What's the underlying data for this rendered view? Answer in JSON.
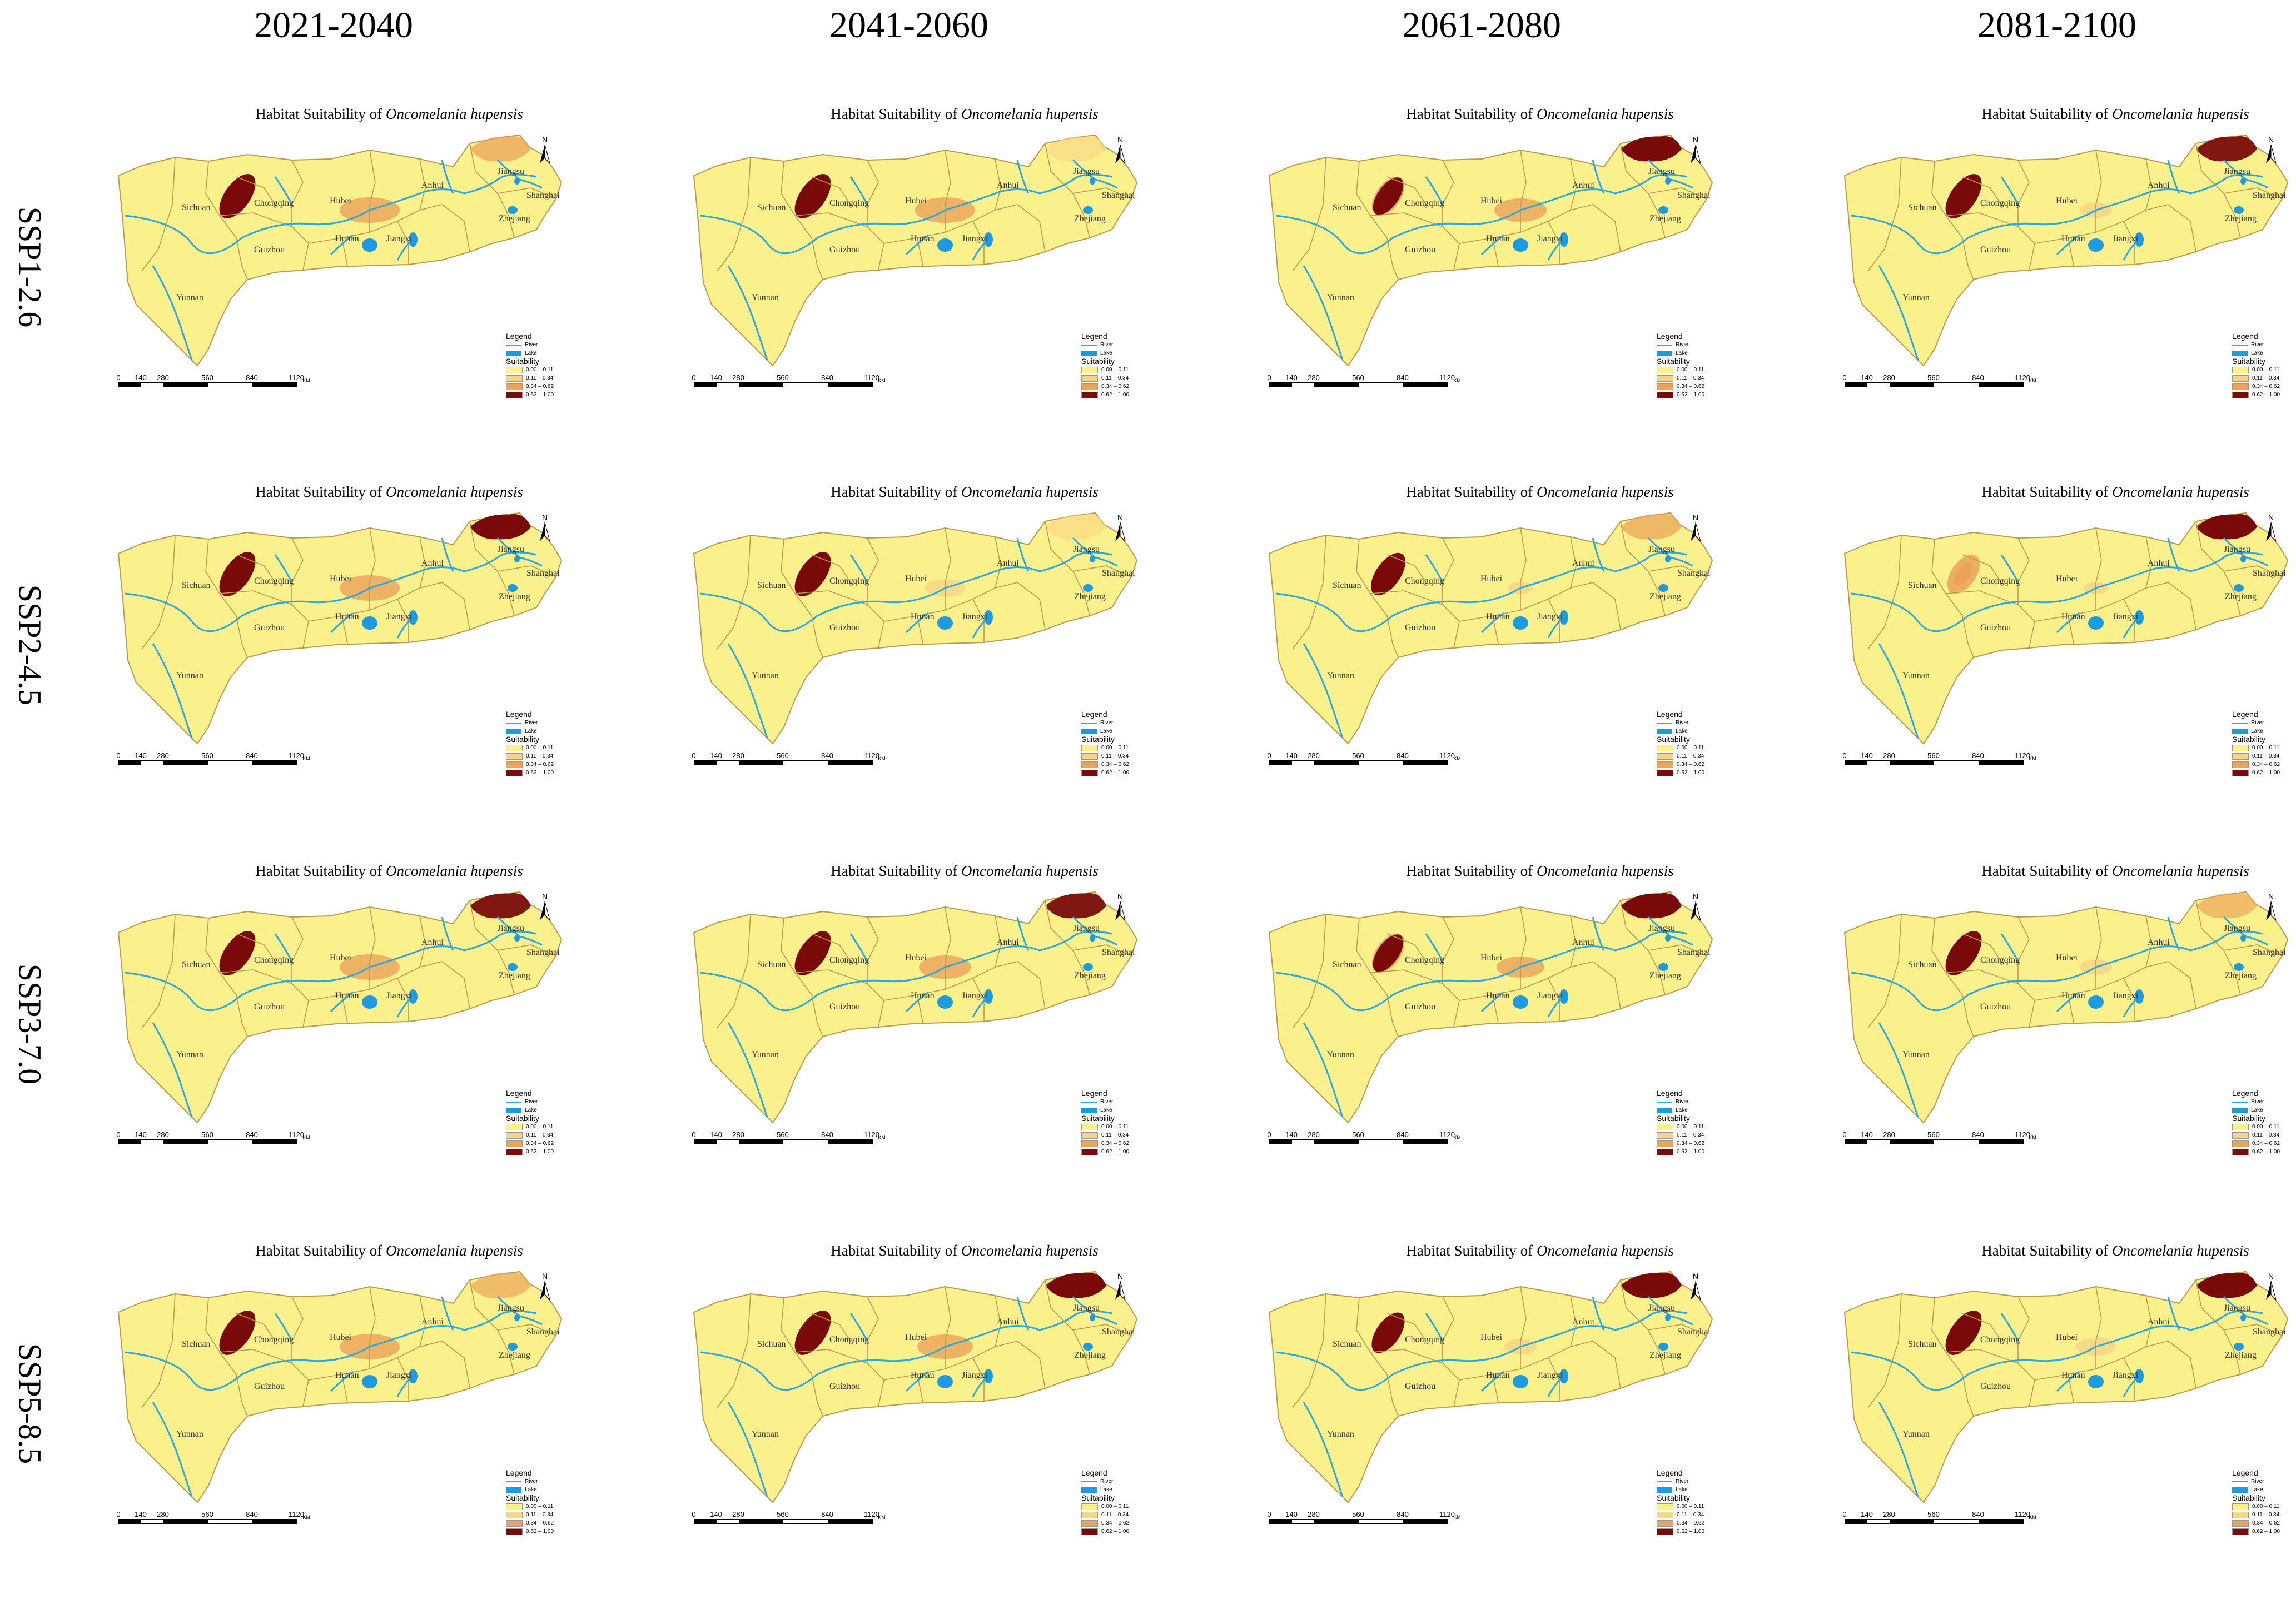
{
  "columns": [
    "2021-2040",
    "2041-2060",
    "2061-2080",
    "2081-2100"
  ],
  "rows": [
    "SSP1-2.6",
    "SSP2-4.5",
    "SSP3-7.0",
    "SSP5-8.5"
  ],
  "panel": {
    "title_prefix": "Habitat Suitability of",
    "title_species": "Oncomelania hupensis",
    "north_label": "N",
    "province_labels": [
      "Sichuan",
      "Chongqing",
      "Hubei",
      "Anhui",
      "Jiangsu",
      "Shanghai",
      "Zhejiang",
      "Hunan",
      "Jiangxi",
      "Guizhou",
      "Yunnan"
    ],
    "legend": {
      "title": "Legend",
      "river_label": "River",
      "lake_label": "Lake",
      "suitability_title": "Suitability",
      "classes": [
        {
          "label": "0.00 – 0.11",
          "color": "#FAF08C"
        },
        {
          "label": "0.11 – 0.34",
          "color": "#F8D484"
        },
        {
          "label": "0.34 – 0.62",
          "color": "#EBA25A"
        },
        {
          "label": "0.62 – 1.00",
          "color": "#7A0A0A"
        }
      ]
    },
    "scale_ticks": [
      "0",
      "140",
      "280",
      "560",
      "840",
      "1120"
    ],
    "scale_unit": "KM"
  },
  "colors": {
    "land": "#FAF08C",
    "border": "#B89A50",
    "river": "#27A9E1",
    "lake": "#1C9BE0",
    "high": "#7A0A0A",
    "mid": "#EBA25A",
    "low": "#F8D484"
  },
  "suitability_patches": [
    [
      {
        "sichuan": 1.0,
        "hubei": 0.55,
        "jiangsu": 0.55
      },
      {
        "sichuan": 1.0,
        "hubei": 0.55,
        "jiangsu": 0.3
      },
      {
        "sichuan": 0.8,
        "hubei": 0.45,
        "jiangsu": 1.0
      },
      {
        "sichuan": 1.0,
        "hubei": 0.2,
        "jiangsu": 0.9
      }
    ],
    [
      {
        "sichuan": 1.0,
        "hubei": 0.55,
        "jiangsu": 1.0
      },
      {
        "sichuan": 1.0,
        "hubei": 0.3,
        "jiangsu": 0.2
      },
      {
        "sichuan": 0.95,
        "hubei": 0.1,
        "jiangsu": 0.5
      },
      {
        "sichuan": 0.4,
        "hubei": 0.1,
        "jiangsu": 1.0
      }
    ],
    [
      {
        "sichuan": 1.0,
        "hubei": 0.55,
        "jiangsu": 0.9
      },
      {
        "sichuan": 1.0,
        "hubei": 0.45,
        "jiangsu": 0.9
      },
      {
        "sichuan": 0.8,
        "hubei": 0.4,
        "jiangsu": 1.0
      },
      {
        "sichuan": 1.0,
        "hubei": 0.2,
        "jiangsu": 0.4
      }
    ],
    [
      {
        "sichuan": 1.0,
        "hubei": 0.55,
        "jiangsu": 0.4
      },
      {
        "sichuan": 1.0,
        "hubei": 0.5,
        "jiangsu": 1.0
      },
      {
        "sichuan": 0.9,
        "hubei": 0.2,
        "jiangsu": 1.0
      },
      {
        "sichuan": 1.0,
        "hubei": 0.3,
        "jiangsu": 1.0
      }
    ]
  ]
}
